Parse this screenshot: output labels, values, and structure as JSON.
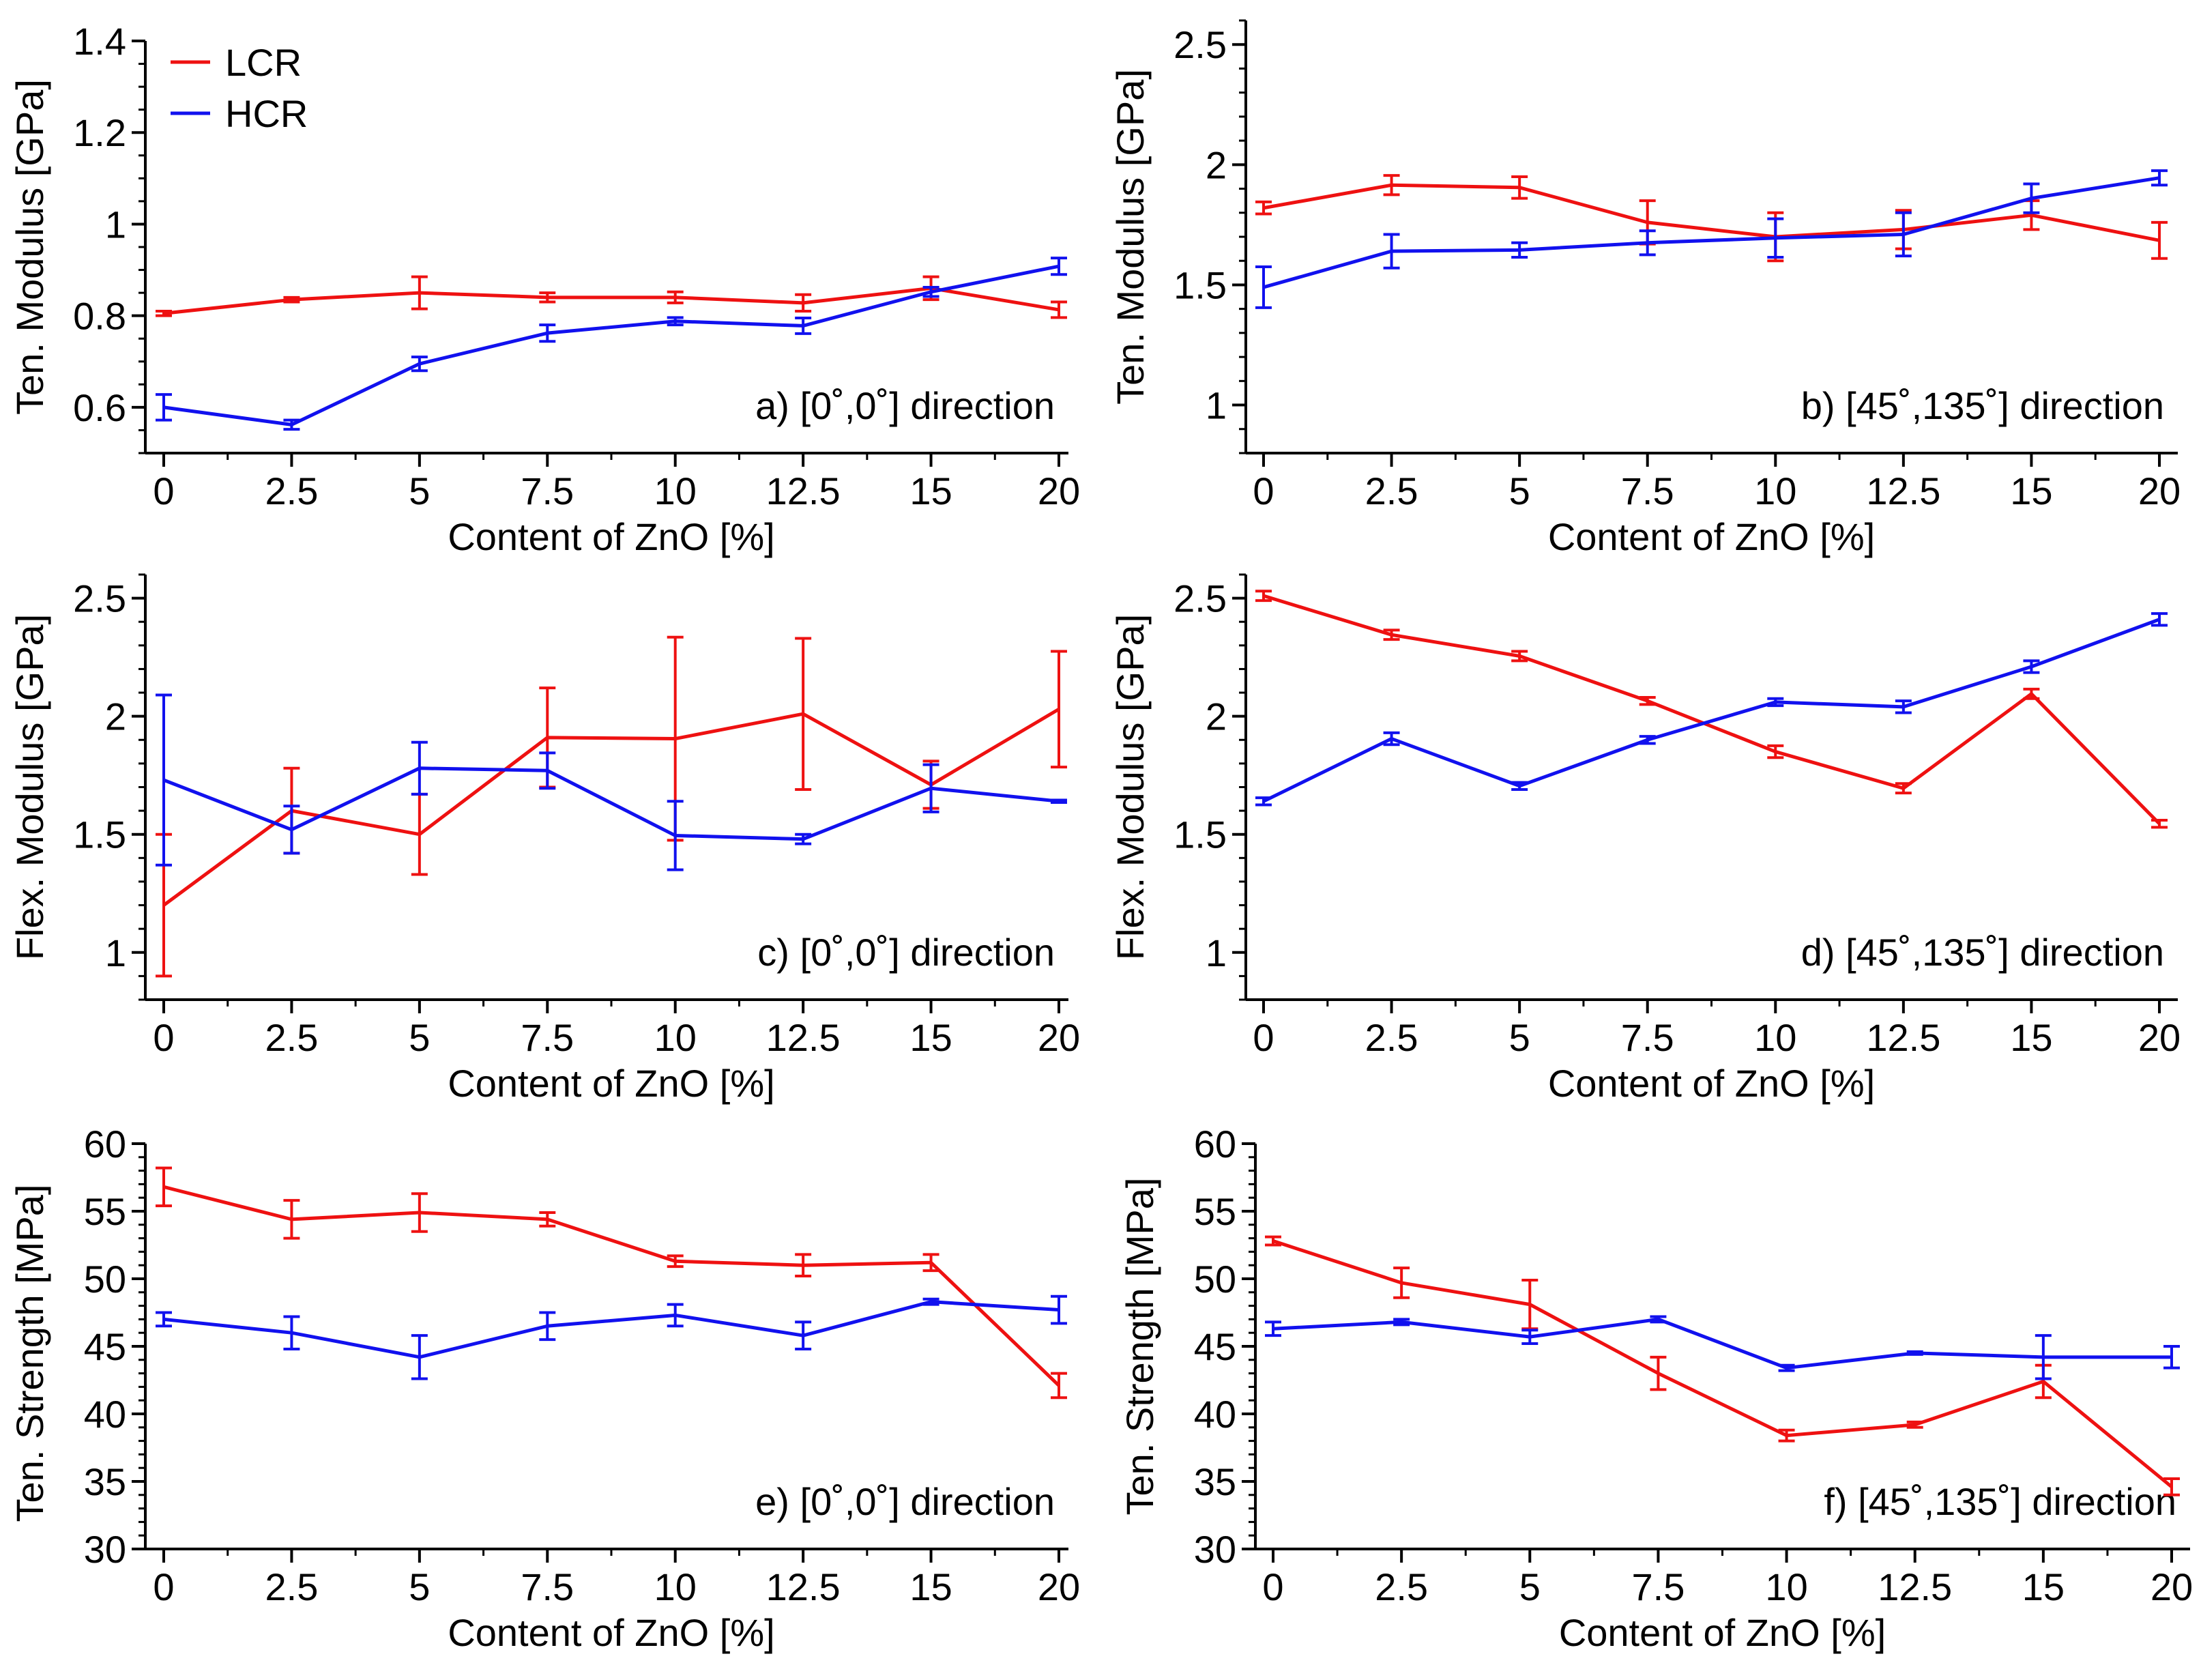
{
  "legend": [
    {
      "name": "LCR",
      "color": "#ee1111"
    },
    {
      "name": "HCR",
      "color": "#1111ee"
    }
  ],
  "chart_data": [
    {
      "type": "line",
      "title": "a) [0˚,0˚] direction",
      "xlabel": "Content of ZnO [%]",
      "ylabel": "Ten. Modulus [GPa]",
      "categories": [
        "0",
        "2.5",
        "5",
        "7.5",
        "10",
        "12.5",
        "15",
        "20"
      ],
      "ylim": [
        0.5,
        1.4
      ],
      "yticks": [
        "0.6",
        "0.8",
        "1",
        "1.2",
        "1.4"
      ],
      "y_minor_step": 0.05,
      "series": [
        {
          "name": "LCR",
          "color": "#ee1111",
          "values": [
            0.805,
            0.835,
            0.85,
            0.84,
            0.84,
            0.828,
            0.86,
            0.813
          ],
          "errors": [
            0.005,
            0.005,
            0.035,
            0.01,
            0.012,
            0.018,
            0.025,
            0.017
          ]
        },
        {
          "name": "HCR",
          "color": "#1111ee",
          "values": [
            0.6,
            0.562,
            0.695,
            0.762,
            0.788,
            0.778,
            0.852,
            0.908
          ],
          "errors": [
            0.028,
            0.01,
            0.015,
            0.018,
            0.008,
            0.017,
            0.01,
            0.018
          ]
        }
      ]
    },
    {
      "type": "line",
      "title": "b) [45˚,135˚] direction",
      "xlabel": "Content of ZnO [%]",
      "ylabel": "Ten. Modulus [GPa]",
      "categories": [
        "0",
        "2.5",
        "5",
        "7.5",
        "10",
        "12.5",
        "15",
        "20"
      ],
      "ylim": [
        0.8,
        2.6
      ],
      "yticks": [
        "1",
        "1.5",
        "2",
        "2.5"
      ],
      "y_minor_step": 0.1,
      "series": [
        {
          "name": "LCR",
          "color": "#ee1111",
          "values": [
            1.82,
            1.915,
            1.905,
            1.76,
            1.7,
            1.73,
            1.79,
            1.685
          ],
          "errors": [
            0.025,
            0.04,
            0.045,
            0.09,
            0.1,
            0.08,
            0.06,
            0.075
          ]
        },
        {
          "name": "HCR",
          "color": "#1111ee",
          "values": [
            1.49,
            1.64,
            1.645,
            1.675,
            1.695,
            1.71,
            1.86,
            1.945
          ],
          "errors": [
            0.085,
            0.07,
            0.03,
            0.05,
            0.08,
            0.09,
            0.06,
            0.03
          ]
        }
      ]
    },
    {
      "type": "line",
      "title": "c) [0˚,0˚] direction",
      "xlabel": "Content of ZnO [%]",
      "ylabel": "Flex. Modulus [GPa]",
      "categories": [
        "0",
        "2.5",
        "5",
        "7.5",
        "10",
        "12.5",
        "15",
        "20"
      ],
      "ylim": [
        0.8,
        2.6
      ],
      "yticks": [
        "1",
        "1.5",
        "2",
        "2.5"
      ],
      "y_minor_step": 0.1,
      "series": [
        {
          "name": "LCR",
          "color": "#ee1111",
          "values": [
            1.2,
            1.6,
            1.5,
            1.91,
            1.905,
            2.01,
            1.71,
            2.03
          ],
          "errors": [
            0.3,
            0.18,
            0.17,
            0.21,
            0.43,
            0.32,
            0.1,
            0.245
          ]
        },
        {
          "name": "HCR",
          "color": "#1111ee",
          "values": [
            1.73,
            1.52,
            1.78,
            1.77,
            1.495,
            1.48,
            1.695,
            1.64
          ],
          "errors": [
            0.36,
            0.1,
            0.11,
            0.075,
            0.145,
            0.02,
            0.1,
            0.005
          ]
        }
      ]
    },
    {
      "type": "line",
      "title": "d) [45˚,135˚] direction",
      "xlabel": "Content of ZnO [%]",
      "ylabel": "Flex. Modulus [GPa]",
      "categories": [
        "0",
        "2.5",
        "5",
        "7.5",
        "10",
        "12.5",
        "15",
        "20"
      ],
      "ylim": [
        0.8,
        2.6
      ],
      "yticks": [
        "1",
        "1.5",
        "2",
        "2.5"
      ],
      "y_minor_step": 0.1,
      "series": [
        {
          "name": "LCR",
          "color": "#ee1111",
          "values": [
            2.51,
            2.345,
            2.255,
            2.065,
            1.85,
            1.695,
            2.095,
            1.545
          ],
          "errors": [
            0.02,
            0.02,
            0.02,
            0.015,
            0.025,
            0.02,
            0.02,
            0.015
          ]
        },
        {
          "name": "HCR",
          "color": "#1111ee",
          "values": [
            1.64,
            1.905,
            1.705,
            1.9,
            2.06,
            2.04,
            2.21,
            2.41
          ],
          "errors": [
            0.015,
            0.025,
            0.015,
            0.015,
            0.015,
            0.025,
            0.025,
            0.025
          ]
        }
      ]
    },
    {
      "type": "line",
      "title": "e) [0˚,0˚] direction",
      "xlabel": "Content of ZnO [%]",
      "ylabel": "Ten. Strength [MPa]",
      "categories": [
        "0",
        "2.5",
        "5",
        "7.5",
        "10",
        "12.5",
        "15",
        "20"
      ],
      "ylim": [
        30,
        60
      ],
      "yticks": [
        "30",
        "35",
        "40",
        "45",
        "50",
        "55",
        "60"
      ],
      "y_minor_step": 1,
      "series": [
        {
          "name": "LCR",
          "color": "#ee1111",
          "values": [
            56.8,
            54.4,
            54.9,
            54.4,
            51.3,
            51.0,
            51.2,
            42.1
          ],
          "errors": [
            1.4,
            1.4,
            1.4,
            0.5,
            0.4,
            0.8,
            0.6,
            0.9
          ]
        },
        {
          "name": "HCR",
          "color": "#1111ee",
          "values": [
            47.0,
            46.0,
            44.2,
            46.5,
            47.3,
            45.8,
            48.3,
            47.7
          ],
          "errors": [
            0.5,
            1.2,
            1.6,
            1.0,
            0.8,
            1.0,
            0.2,
            1.0
          ]
        }
      ]
    },
    {
      "type": "line",
      "title": "f) [45˚,135˚] direction",
      "xlabel": "Content of ZnO [%]",
      "ylabel": "Ten. Strength [MPa]",
      "categories": [
        "0",
        "2.5",
        "5",
        "7.5",
        "10",
        "12.5",
        "15",
        "20"
      ],
      "ylim": [
        30,
        60
      ],
      "yticks": [
        "30",
        "35",
        "40",
        "45",
        "50",
        "55",
        "60"
      ],
      "y_minor_step": 1,
      "series": [
        {
          "name": "LCR",
          "color": "#ee1111",
          "values": [
            52.8,
            49.7,
            48.1,
            43.0,
            38.4,
            39.2,
            42.4,
            34.6
          ],
          "errors": [
            0.3,
            1.1,
            1.8,
            1.2,
            0.4,
            0.2,
            1.2,
            0.6
          ]
        },
        {
          "name": "HCR",
          "color": "#1111ee",
          "values": [
            46.3,
            46.8,
            45.7,
            47.0,
            43.4,
            44.5,
            44.2,
            44.2
          ],
          "errors": [
            0.5,
            0.2,
            0.5,
            0.2,
            0.2,
            0.1,
            1.6,
            0.8
          ]
        }
      ]
    }
  ]
}
